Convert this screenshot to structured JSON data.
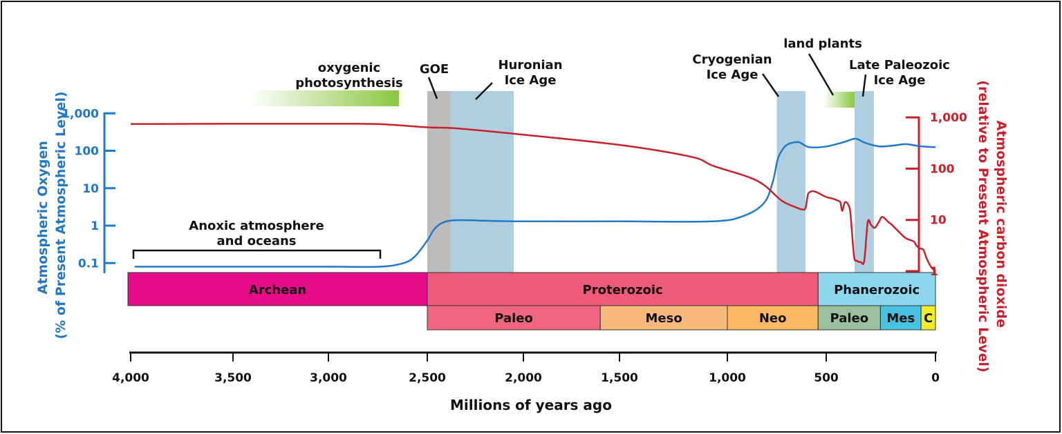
{
  "chart_data": {
    "type": "line",
    "xlabel": "Millions of years ago",
    "x_ticks": [
      "4,000",
      "3,500",
      "3,000",
      "2,500",
      "2,000",
      "1,500",
      "1,000",
      "500",
      "0"
    ],
    "x_tick_values": [
      4000,
      3500,
      3000,
      2500,
      2000,
      1500,
      1000,
      500,
      0
    ],
    "xlim": [
      4000,
      0
    ],
    "y_left": {
      "label_line1": "Atmospheric Oxygen",
      "label_line2": "(% of Present Atmospheric Level)",
      "scale": "log",
      "ticks": [
        "1,000",
        "100",
        "10",
        "1",
        "0.1"
      ],
      "tick_values": [
        1000,
        100,
        10,
        1,
        0.1
      ],
      "color": "#1f78c8"
    },
    "y_right": {
      "label_line1": "Atmospheric carbon dioxide",
      "label_line2": "(relative to Present Atmospheric Level)",
      "scale": "log",
      "ticks": [
        "1,000",
        "100",
        "10",
        "1"
      ],
      "tick_values": [
        1000,
        100,
        10,
        1
      ],
      "color": "#c8202a"
    },
    "series": [
      {
        "axis": "left",
        "color": "#1f78c8",
        "x": [
          3980,
          3500,
          3000,
          2738,
          2620,
          2563,
          2500,
          2464,
          2420,
          2349,
          2200,
          2000,
          1500,
          1070,
          920,
          815,
          770,
          745,
          720,
          692,
          640,
          587,
          500,
          420,
          367,
          330,
          294,
          250,
          184,
          136,
          60,
          0
        ],
        "y": [
          0.08,
          0.08,
          0.08,
          0.08,
          0.1,
          0.15,
          0.4,
          0.8,
          1.2,
          1.4,
          1.35,
          1.3,
          1.3,
          1.3,
          1.8,
          4,
          15,
          60,
          110,
          150,
          170,
          125,
          130,
          170,
          210,
          170,
          145,
          130,
          140,
          150,
          130,
          125
        ]
      },
      {
        "axis": "right",
        "color": "#c8202a",
        "x": [
          4000,
          3500,
          3000,
          2750,
          2500,
          2349,
          2000,
          1500,
          1167,
          1070,
          900,
          815,
          727,
          660,
          622,
          605,
          595,
          587,
          560,
          500,
          470,
          449,
          435,
          427,
          415,
          400,
          389,
          373,
          360,
          342,
          326,
          310,
          295,
          278,
          260,
          243,
          215,
          199,
          170,
          136,
          100,
          88,
          73,
          55,
          41,
          20,
          0
        ],
        "y": [
          740,
          750,
          750,
          740,
          640,
          610,
          460,
          290,
          170,
          115,
          70,
          48,
          24,
          18,
          16,
          17,
          28,
          34,
          36,
          28,
          26,
          24,
          22,
          15,
          22,
          20,
          13,
          2,
          1.6,
          1.5,
          1.6,
          9,
          8,
          7,
          9,
          11.5,
          9,
          8,
          6,
          4.4,
          3.8,
          3.2,
          2.8,
          2.6,
          1.8,
          1.2,
          1
        ]
      }
    ],
    "eons": [
      {
        "name": "Archean",
        "start": 4000,
        "end": 2500,
        "color": "#e80c8a"
      },
      {
        "name": "Proterozoic",
        "start": 2500,
        "end": 541,
        "color": "#ee5a78"
      },
      {
        "name": "Phanerozoic",
        "start": 541,
        "end": 0,
        "color": "#8dd7ee"
      }
    ],
    "eras": [
      {
        "name": "Paleo",
        "start": 2500,
        "end": 1600,
        "color": "#f0667e"
      },
      {
        "name": "Meso",
        "start": 1600,
        "end": 1000,
        "color": "#f8b97c"
      },
      {
        "name": "Neo",
        "start": 1000,
        "end": 541,
        "color": "#fcb862"
      },
      {
        "name": "Paleo",
        "start": 541,
        "end": 252,
        "color": "#9bbf9f"
      },
      {
        "name": "Mes",
        "start": 252,
        "end": 66,
        "color": "#47c2e0"
      },
      {
        "name": "C",
        "start": 66,
        "end": 0,
        "color": "#f0ec2a"
      }
    ],
    "bands": [
      {
        "name": "GOE",
        "start": 2500,
        "end": 2378,
        "color": "#bcbcbc"
      },
      {
        "name": "Huronian Ice Age",
        "start": 2378,
        "end": 2050,
        "color": "#afcfe0"
      },
      {
        "name": "Cryogenian Ice Age",
        "start": 750,
        "end": 605,
        "color": "#afcfe0"
      },
      {
        "name": "Late Paleozoic Ice Age",
        "start": 370,
        "end": 282,
        "color": "#afcfe0"
      }
    ],
    "gradients": [
      {
        "name": "oxygenic photosynthesis",
        "start": 3417,
        "end": 2643,
        "color": "#8cc63f"
      },
      {
        "name": "land plants",
        "start": 515,
        "end": 370,
        "color": "#8cc63f"
      }
    ],
    "annotations": {
      "oxygenic_1": "oxygenic",
      "oxygenic_2": "photosynthesis",
      "goe": "GOE",
      "huronian_1": "Huronian",
      "huronian_2": "Ice Age",
      "cryogenian_1": "Cryogenian",
      "cryogenian_2": "Ice Age",
      "land_plants": "land plants",
      "late_paleozoic_1": "Late Paleozoic",
      "late_paleozoic_2": "Ice Age",
      "anoxic_1": "Anoxic atmosphere",
      "anoxic_2": "and oceans"
    }
  }
}
